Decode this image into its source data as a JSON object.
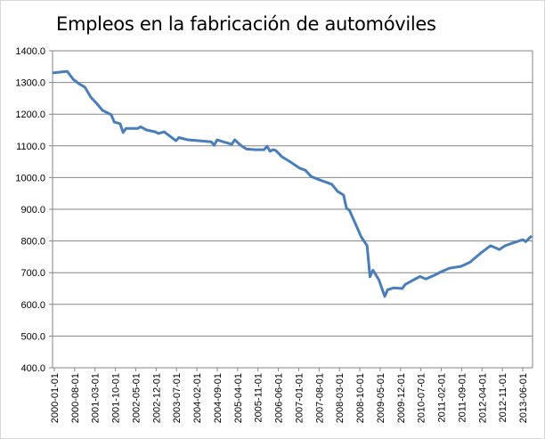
{
  "chart_data": {
    "type": "line",
    "title": "Empleos en la fabricación de automóviles",
    "xlabel": "",
    "ylabel": "",
    "ylim": [
      400,
      1400
    ],
    "yticks": [
      "400.0",
      "500.0",
      "600.0",
      "700.0",
      "800.0",
      "900.0",
      "1000.0",
      "1100.0",
      "1200.0",
      "1300.0",
      "1400.0"
    ],
    "xticks": [
      "2000-01-01",
      "2000-08-01",
      "2001-03-01",
      "2001-10-01",
      "2002-05-01",
      "2002-12-01",
      "2003-07-01",
      "2004-02-01",
      "2004-09-01",
      "2005-04-01",
      "2005-11-01",
      "2006-06-01",
      "2007-01-01",
      "2007-08-01",
      "2008-03-01",
      "2008-10-01",
      "2009-05-01",
      "2009-12-01",
      "2010-07-01",
      "2011-02-01",
      "2011-09-01",
      "2012-04-01",
      "2012-11-01",
      "2013-06-01"
    ],
    "xrange": [
      "2000-01",
      "2013-08"
    ],
    "grid": true,
    "legend": "none",
    "series": [
      {
        "name": "Empleos",
        "color": "#4a7ebb",
        "x": [
          "2000-01",
          "2000-06",
          "2000-08",
          "2000-10",
          "2000-12",
          "2001-02",
          "2001-04",
          "2001-06",
          "2001-09",
          "2001-10",
          "2001-12",
          "2002-01",
          "2002-02",
          "2002-06",
          "2002-07",
          "2002-09",
          "2002-12",
          "2003-01",
          "2003-03",
          "2003-05",
          "2003-07",
          "2003-08",
          "2003-11",
          "2004-07",
          "2004-08",
          "2004-09",
          "2004-11",
          "2005-02",
          "2005-03",
          "2005-05",
          "2005-07",
          "2005-10",
          "2006-01",
          "2006-02",
          "2006-03",
          "2006-04",
          "2006-05",
          "2006-07",
          "2006-10",
          "2007-01",
          "2007-03",
          "2007-05",
          "2007-08",
          "2007-12",
          "2008-02",
          "2008-04",
          "2008-05",
          "2008-06",
          "2008-08",
          "2008-10",
          "2008-12",
          "2009-01",
          "2009-02",
          "2009-04",
          "2009-06",
          "2009-07",
          "2009-09",
          "2009-12",
          "2010-01",
          "2010-04",
          "2010-06",
          "2010-08",
          "2010-11",
          "2011-01",
          "2011-04",
          "2011-08",
          "2011-11",
          "2012-03",
          "2012-06",
          "2012-09",
          "2012-11",
          "2013-02",
          "2013-05",
          "2013-06",
          "2013-08"
        ],
        "values": [
          1330,
          1335,
          1310,
          1296,
          1285,
          1254,
          1234,
          1212,
          1198,
          1175,
          1170,
          1142,
          1155,
          1155,
          1160,
          1150,
          1144,
          1139,
          1144,
          1130,
          1116,
          1126,
          1119,
          1113,
          1102,
          1119,
          1113,
          1105,
          1119,
          1102,
          1090,
          1088,
          1088,
          1099,
          1083,
          1088,
          1085,
          1066,
          1049,
          1030,
          1023,
          1003,
          992,
          979,
          956,
          945,
          903,
          897,
          855,
          813,
          785,
          687,
          708,
          678,
          625,
          646,
          652,
          650,
          663,
          678,
          688,
          680,
          692,
          702,
          714,
          720,
          733,
          764,
          785,
          773,
          785,
          795,
          804,
          798,
          816
        ]
      }
    ]
  }
}
